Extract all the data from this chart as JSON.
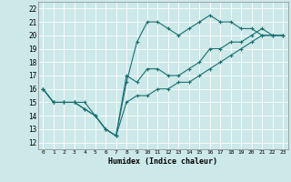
{
  "xlabel": "Humidex (Indice chaleur)",
  "ylabel": "",
  "xlim": [
    -0.5,
    23.5
  ],
  "ylim": [
    11.5,
    22.5
  ],
  "xticks": [
    0,
    1,
    2,
    3,
    4,
    5,
    6,
    7,
    8,
    9,
    10,
    11,
    12,
    13,
    14,
    15,
    16,
    17,
    18,
    19,
    20,
    21,
    22,
    23
  ],
  "yticks": [
    12,
    13,
    14,
    15,
    16,
    17,
    18,
    19,
    20,
    21,
    22
  ],
  "bg_color": "#cce8e8",
  "line_color": "#1a7070",
  "grid_color": "#ffffff",
  "line1_x": [
    0,
    1,
    2,
    3,
    4,
    5,
    6,
    7,
    8,
    9,
    10,
    11,
    12,
    13,
    14,
    15,
    16,
    17,
    18,
    19,
    20,
    21,
    22,
    23
  ],
  "line1_y": [
    16,
    15,
    15,
    15,
    15,
    14,
    13,
    12.5,
    16.5,
    19.5,
    21,
    21,
    20.5,
    20,
    20.5,
    21,
    21.5,
    21,
    21,
    20.5,
    20.5,
    20,
    20,
    20
  ],
  "line2_x": [
    0,
    1,
    2,
    3,
    4,
    5,
    6,
    7,
    8,
    9,
    10,
    11,
    12,
    13,
    14,
    15,
    16,
    17,
    18,
    19,
    20,
    21,
    22,
    23
  ],
  "line2_y": [
    16,
    15,
    15,
    15,
    14.5,
    14,
    13,
    12.5,
    17,
    16.5,
    17.5,
    17.5,
    17,
    17,
    17.5,
    18,
    19,
    19,
    19.5,
    19.5,
    20,
    20.5,
    20,
    20
  ],
  "line3_x": [
    0,
    1,
    2,
    3,
    4,
    5,
    6,
    7,
    8,
    9,
    10,
    11,
    12,
    13,
    14,
    15,
    16,
    17,
    18,
    19,
    20,
    21,
    22,
    23
  ],
  "line3_y": [
    16,
    15,
    15,
    15,
    14.5,
    14,
    13,
    12.5,
    15,
    15.5,
    15.5,
    16,
    16,
    16.5,
    16.5,
    17,
    17.5,
    18,
    18.5,
    19,
    19.5,
    20,
    20,
    20
  ]
}
